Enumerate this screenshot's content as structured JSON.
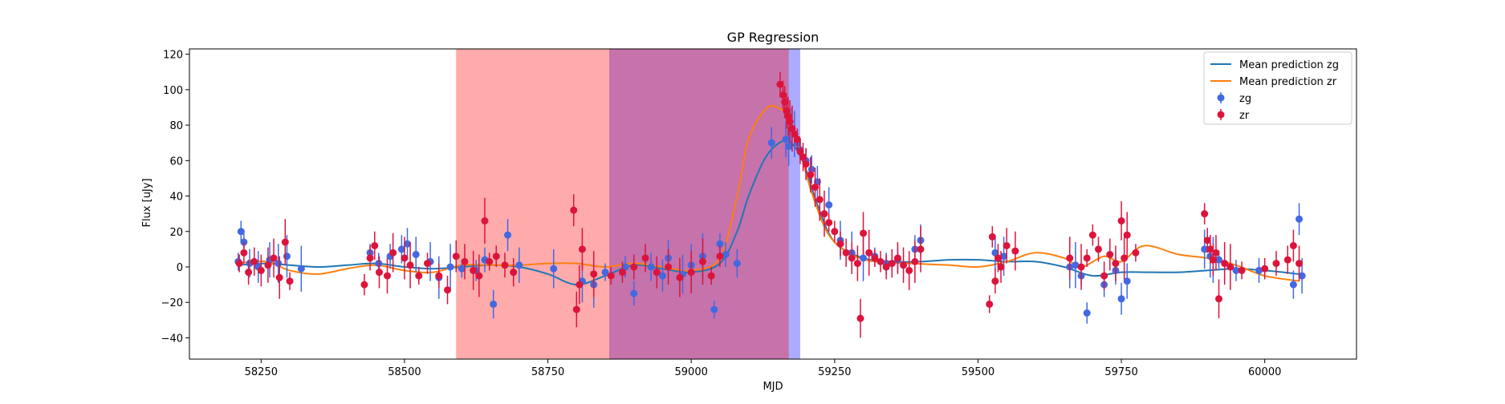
{
  "chart_data": {
    "type": "scatter",
    "title": "GP Regression",
    "xlabel": "MJD",
    "ylabel": "Flux [uJy]",
    "xlim": [
      58125,
      60160
    ],
    "ylim": [
      -52,
      123
    ],
    "xticks": [
      58250,
      58500,
      58750,
      59000,
      59250,
      59500,
      59750,
      60000
    ],
    "yticks": [
      -40,
      -20,
      0,
      20,
      40,
      60,
      80,
      100,
      120
    ],
    "grid": false,
    "legend_position": "top-right",
    "shaded_regions": [
      {
        "x0": 58590,
        "x1": 58857,
        "color": "#ff0000",
        "opacity": 0.33
      },
      {
        "x0": 58857,
        "x1": 59190,
        "color": "#0000ff",
        "opacity": 0.33
      },
      {
        "x0": 58857,
        "x1": 59170,
        "color": "#ff0000",
        "opacity": 0.33
      }
    ],
    "lines": [
      {
        "name": "Mean prediction zg",
        "color": "#1f77b4",
        "x": [
          58208,
          58260,
          58300,
          58350,
          58400,
          58450,
          58500,
          58550,
          58600,
          58650,
          58700,
          58750,
          58800,
          58850,
          58900,
          58950,
          59000,
          59050,
          59080,
          59100,
          59130,
          59160,
          59180,
          59200,
          59220,
          59250,
          59300,
          59350,
          59400,
          59450,
          59500,
          59550,
          59600,
          59650,
          59700,
          59750,
          59800,
          59850,
          59900,
          59950,
          60000,
          60060
        ],
        "y": [
          1,
          2,
          1,
          0,
          1,
          2,
          0,
          -1,
          0,
          1,
          0,
          -4,
          -10,
          -5,
          1,
          -1,
          -3,
          2,
          20,
          40,
          62,
          71,
          68,
          55,
          35,
          14,
          5,
          3,
          3,
          4,
          4,
          3,
          3,
          0,
          -5,
          -3,
          -3,
          -3,
          -2,
          -1,
          -2,
          -4
        ]
      },
      {
        "name": "Mean prediction zr",
        "color": "#ff7f0e",
        "x": [
          58208,
          58260,
          58300,
          58350,
          58400,
          58450,
          58500,
          58550,
          58600,
          58650,
          58700,
          58750,
          58800,
          58850,
          58900,
          58950,
          59000,
          59050,
          59080,
          59100,
          59130,
          59150,
          59170,
          59190,
          59210,
          59240,
          59280,
          59320,
          59380,
          59450,
          59500,
          59550,
          59600,
          59650,
          59680,
          59720,
          59750,
          59790,
          59850,
          59900,
          59950,
          60000,
          60060
        ],
        "y": [
          2,
          3,
          -2,
          -4,
          -1,
          1,
          -2,
          -3,
          1,
          1,
          1,
          2,
          2,
          0,
          2,
          0,
          -2,
          5,
          40,
          72,
          89,
          90,
          84,
          65,
          42,
          18,
          7,
          3,
          2,
          1,
          0,
          3,
          8,
          5,
          0,
          6,
          3,
          12,
          7,
          5,
          1,
          -5,
          -8
        ]
      }
    ],
    "series": [
      {
        "name": "zg",
        "color": "#4169e1",
        "x": [
          58210,
          58215,
          58220,
          58230,
          58245,
          58265,
          58280,
          58295,
          58320,
          58440,
          58455,
          58475,
          58495,
          58505,
          58520,
          58545,
          58560,
          58580,
          58600,
          58625,
          58640,
          58655,
          58680,
          58700,
          58760,
          58810,
          58830,
          58850,
          58885,
          58900,
          58930,
          58950,
          58960,
          58985,
          59000,
          59020,
          59040,
          59050,
          59060,
          59080,
          59140,
          59165,
          59170,
          59175,
          59180,
          59185,
          59190,
          59200,
          59210,
          59220,
          59240,
          59260,
          59280,
          59300,
          59320,
          59340,
          59360,
          59390,
          59400,
          59530,
          59545,
          59660,
          59670,
          59680,
          59690,
          59720,
          59740,
          59750,
          59760,
          59895,
          59905,
          59910,
          59920,
          59950,
          59990,
          60050,
          60060,
          60065
        ],
        "y": [
          3,
          20,
          14,
          2,
          0,
          4,
          2,
          6,
          -1,
          8,
          2,
          6,
          10,
          13,
          7,
          3,
          -6,
          0,
          -1,
          -2,
          4,
          -21,
          18,
          1,
          -1,
          -8,
          -10,
          -3,
          0,
          -15,
          0,
          -5,
          5,
          -4,
          1,
          6,
          -24,
          13,
          7,
          2,
          70,
          72,
          68,
          78,
          75,
          70,
          66,
          60,
          55,
          48,
          35,
          15,
          8,
          5,
          6,
          2,
          4,
          10,
          15,
          8,
          6,
          0,
          1,
          -5,
          -26,
          -10,
          -2,
          -18,
          -8,
          10,
          6,
          4,
          4,
          -2,
          -2,
          -10,
          27,
          -5
        ]
      },
      {
        "name": "zr",
        "color": "#dc143c",
        "x": [
          58212,
          58220,
          58228,
          58238,
          58250,
          58262,
          58272,
          58282,
          58292,
          58300,
          58430,
          58440,
          58448,
          58456,
          58470,
          58480,
          58500,
          58510,
          58525,
          58540,
          58560,
          58575,
          58590,
          58605,
          58620,
          58630,
          58640,
          58648,
          58660,
          58675,
          58690,
          58795,
          58800,
          58805,
          58810,
          58830,
          58860,
          58880,
          58900,
          58920,
          58940,
          58960,
          58980,
          59000,
          59020,
          59035,
          59050,
          59155,
          59160,
          59163,
          59166,
          59169,
          59172,
          59176,
          59180,
          59185,
          59190,
          59195,
          59200,
          59208,
          59216,
          59224,
          59232,
          59240,
          59250,
          59260,
          59270,
          59280,
          59290,
          59295,
          59300,
          59310,
          59320,
          59330,
          59340,
          59350,
          59360,
          59370,
          59380,
          59390,
          59400,
          59520,
          59525,
          59530,
          59535,
          59540,
          59550,
          59565,
          59660,
          59680,
          59690,
          59700,
          59710,
          59720,
          59730,
          59740,
          59750,
          59755,
          59760,
          59775,
          59895,
          59900,
          59905,
          59910,
          59915,
          59920,
          59930,
          59940,
          59960,
          60000,
          60020,
          60040,
          60050,
          60060
        ],
        "y": [
          2,
          8,
          -3,
          3,
          -2,
          1,
          5,
          -6,
          14,
          -8,
          -10,
          5,
          12,
          -3,
          -5,
          8,
          5,
          1,
          -5,
          2,
          -5,
          -13,
          6,
          3,
          -2,
          -5,
          26,
          3,
          6,
          1,
          -3,
          32,
          -24,
          -10,
          10,
          -4,
          -5,
          -3,
          0,
          5,
          -3,
          0,
          -6,
          -3,
          3,
          -5,
          6,
          103,
          97,
          93,
          88,
          85,
          82,
          78,
          75,
          72,
          65,
          62,
          58,
          52,
          45,
          38,
          30,
          25,
          20,
          13,
          8,
          5,
          2,
          -29,
          19,
          8,
          5,
          3,
          0,
          2,
          5,
          1,
          -2,
          3,
          10,
          -21,
          17,
          -8,
          5,
          0,
          12,
          9,
          5,
          0,
          5,
          18,
          10,
          -5,
          7,
          2,
          26,
          5,
          18,
          8,
          30,
          15,
          10,
          4,
          8,
          -18,
          2,
          0,
          -2,
          -1,
          2,
          4,
          12,
          2
        ]
      }
    ]
  }
}
